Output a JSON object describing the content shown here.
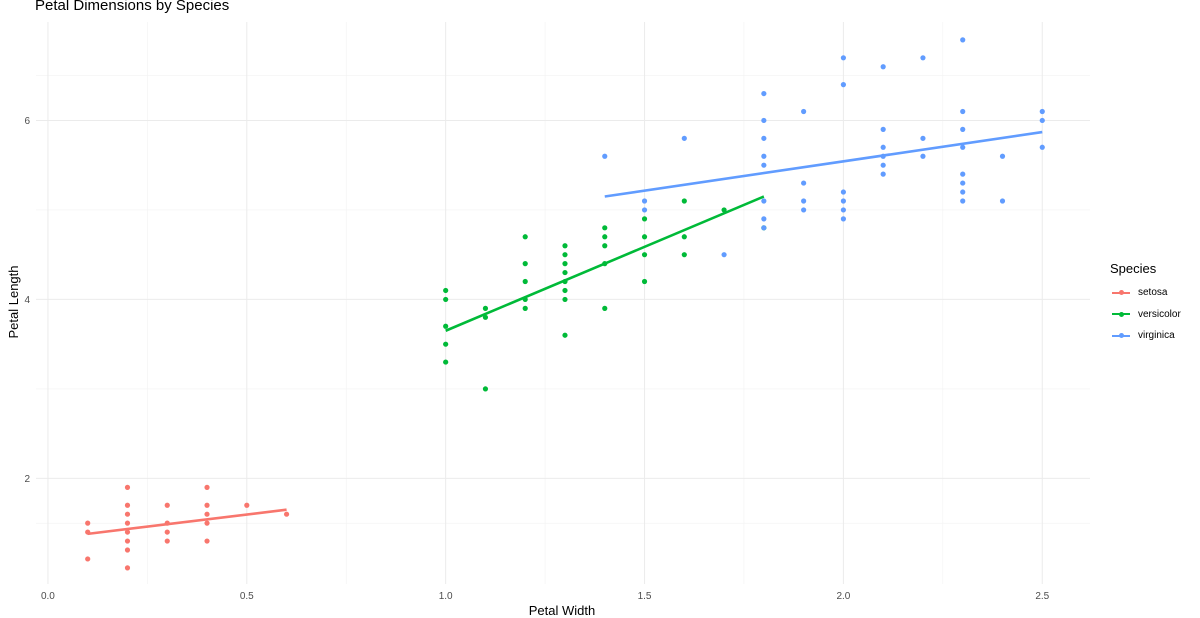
{
  "chart_data": {
    "type": "scatter",
    "title": "Petal Dimensions by Species",
    "xlabel": "Petal Width",
    "ylabel": "Petal Length",
    "xlim": [
      -0.03,
      2.62
    ],
    "ylim": [
      0.82,
      7.1
    ],
    "x_ticks": [
      0.0,
      0.5,
      1.0,
      1.5,
      2.0,
      2.5
    ],
    "x_tick_labels": [
      "0.0",
      "0.5",
      "1.0",
      "1.5",
      "2.0",
      "2.5"
    ],
    "y_ticks": [
      2,
      4,
      6
    ],
    "y_tick_labels": [
      "2",
      "4",
      "6"
    ],
    "grid": true,
    "legend": {
      "title": "Species",
      "position": "right"
    },
    "series": [
      {
        "name": "setosa",
        "color": "#F8766D",
        "points": [
          [
            0.1,
            1.1
          ],
          [
            0.1,
            1.4
          ],
          [
            0.1,
            1.5
          ],
          [
            0.2,
            1.0
          ],
          [
            0.2,
            1.2
          ],
          [
            0.2,
            1.3
          ],
          [
            0.2,
            1.4
          ],
          [
            0.2,
            1.5
          ],
          [
            0.2,
            1.6
          ],
          [
            0.2,
            1.7
          ],
          [
            0.2,
            1.9
          ],
          [
            0.3,
            1.3
          ],
          [
            0.3,
            1.4
          ],
          [
            0.3,
            1.5
          ],
          [
            0.3,
            1.7
          ],
          [
            0.4,
            1.3
          ],
          [
            0.4,
            1.5
          ],
          [
            0.4,
            1.6
          ],
          [
            0.4,
            1.7
          ],
          [
            0.4,
            1.9
          ],
          [
            0.5,
            1.7
          ],
          [
            0.6,
            1.6
          ]
        ],
        "fit": [
          [
            0.1,
            1.38
          ],
          [
            0.6,
            1.65
          ]
        ]
      },
      {
        "name": "versicolor",
        "color": "#00BA38",
        "points": [
          [
            1.0,
            3.3
          ],
          [
            1.0,
            3.5
          ],
          [
            1.0,
            3.7
          ],
          [
            1.0,
            4.0
          ],
          [
            1.0,
            4.1
          ],
          [
            1.1,
            3.0
          ],
          [
            1.1,
            3.8
          ],
          [
            1.1,
            3.9
          ],
          [
            1.2,
            3.9
          ],
          [
            1.2,
            4.0
          ],
          [
            1.2,
            4.2
          ],
          [
            1.2,
            4.4
          ],
          [
            1.2,
            4.7
          ],
          [
            1.3,
            3.6
          ],
          [
            1.3,
            4.0
          ],
          [
            1.3,
            4.1
          ],
          [
            1.3,
            4.2
          ],
          [
            1.3,
            4.3
          ],
          [
            1.3,
            4.4
          ],
          [
            1.3,
            4.5
          ],
          [
            1.3,
            4.6
          ],
          [
            1.4,
            3.9
          ],
          [
            1.4,
            4.4
          ],
          [
            1.4,
            4.6
          ],
          [
            1.4,
            4.7
          ],
          [
            1.4,
            4.8
          ],
          [
            1.5,
            4.2
          ],
          [
            1.5,
            4.5
          ],
          [
            1.5,
            4.7
          ],
          [
            1.5,
            4.9
          ],
          [
            1.6,
            4.5
          ],
          [
            1.6,
            4.7
          ],
          [
            1.6,
            5.1
          ],
          [
            1.7,
            5.0
          ],
          [
            1.8,
            4.8
          ]
        ],
        "fit": [
          [
            1.0,
            3.65
          ],
          [
            1.8,
            5.15
          ]
        ]
      },
      {
        "name": "virginica",
        "color": "#619CFF",
        "points": [
          [
            1.4,
            5.6
          ],
          [
            1.5,
            5.0
          ],
          [
            1.5,
            5.1
          ],
          [
            1.6,
            5.8
          ],
          [
            1.7,
            4.5
          ],
          [
            1.8,
            4.8
          ],
          [
            1.8,
            4.9
          ],
          [
            1.8,
            5.1
          ],
          [
            1.8,
            5.5
          ],
          [
            1.8,
            5.6
          ],
          [
            1.8,
            5.8
          ],
          [
            1.8,
            6.0
          ],
          [
            1.8,
            6.3
          ],
          [
            1.9,
            5.0
          ],
          [
            1.9,
            5.1
          ],
          [
            1.9,
            5.3
          ],
          [
            1.9,
            6.1
          ],
          [
            2.0,
            4.9
          ],
          [
            2.0,
            5.0
          ],
          [
            2.0,
            5.1
          ],
          [
            2.0,
            5.2
          ],
          [
            2.0,
            6.4
          ],
          [
            2.0,
            6.7
          ],
          [
            2.1,
            5.4
          ],
          [
            2.1,
            5.5
          ],
          [
            2.1,
            5.6
          ],
          [
            2.1,
            5.7
          ],
          [
            2.1,
            5.9
          ],
          [
            2.1,
            6.6
          ],
          [
            2.2,
            5.6
          ],
          [
            2.2,
            5.8
          ],
          [
            2.2,
            6.7
          ],
          [
            2.3,
            5.1
          ],
          [
            2.3,
            5.2
          ],
          [
            2.3,
            5.3
          ],
          [
            2.3,
            5.4
          ],
          [
            2.3,
            5.7
          ],
          [
            2.3,
            5.9
          ],
          [
            2.3,
            6.1
          ],
          [
            2.3,
            6.9
          ],
          [
            2.4,
            5.1
          ],
          [
            2.4,
            5.6
          ],
          [
            2.5,
            5.7
          ],
          [
            2.5,
            6.0
          ],
          [
            2.5,
            6.1
          ]
        ],
        "fit": [
          [
            1.4,
            5.15
          ],
          [
            2.5,
            5.87
          ]
        ]
      }
    ]
  }
}
